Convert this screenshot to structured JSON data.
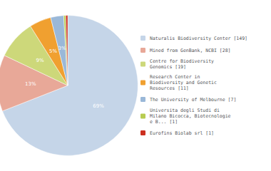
{
  "chart_data": {
    "type": "pie",
    "categories": [
      "Naturalis Biodiversity Center [149]",
      "Mined from GenBank, NCBI [28]",
      "Centre for Biodiversity\nGenomics [19]",
      "Research Center in\nBiodiversity and Genetic\nResources [11]",
      "The University of Melbourne [7]",
      "Universita degli Studi di\nMilano Bicocca, Biotecnologie\ne B... [1]",
      "Eurofins Biolab srl [1]"
    ],
    "values": [
      69,
      13,
      9,
      5,
      3,
      0.46,
      0.46
    ],
    "value_labels": [
      "69%",
      "13%",
      "9%",
      "5%",
      "3%",
      null,
      null
    ],
    "colors": [
      "#c5d5e8",
      "#e8a898",
      "#cdd87a",
      "#f0a030",
      "#9ab8d8",
      "#b8cc50",
      "#cc3020"
    ],
    "data_labels": true,
    "legend": "right"
  }
}
